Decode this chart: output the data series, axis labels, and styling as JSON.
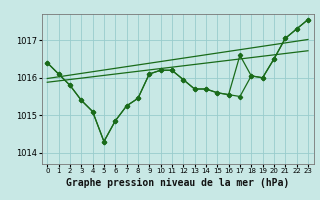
{
  "title": "Graphe pression niveau de la mer (hPa)",
  "bg_color": "#c8e8e5",
  "plot_bg_color": "#c8e8e5",
  "grid_color": "#99cccc",
  "line_color": "#1a6b1a",
  "xlim": [
    -0.5,
    23.5
  ],
  "ylim": [
    1013.7,
    1017.7
  ],
  "yticks": [
    1014,
    1015,
    1016,
    1017
  ],
  "xtick_labels": [
    "0",
    "1",
    "2",
    "3",
    "4",
    "5",
    "6",
    "7",
    "8",
    "9",
    "10",
    "11",
    "12",
    "13",
    "14",
    "15",
    "16",
    "17",
    "18",
    "19",
    "20",
    "21",
    "22",
    "23"
  ],
  "series1": [
    1016.4,
    1016.1,
    1015.8,
    1015.4,
    1015.1,
    1014.3,
    1014.85,
    1015.25,
    1015.45,
    1016.1,
    1016.2,
    1016.2,
    1015.95,
    1015.7,
    1015.7,
    1015.6,
    1015.55,
    1015.5,
    1016.05,
    1016.0,
    1016.5,
    1017.05,
    1017.3,
    1017.55
  ],
  "series2": [
    1016.4,
    1016.1,
    1015.8,
    1015.4,
    1015.1,
    1014.3,
    1014.85,
    1015.25,
    1015.45,
    1016.1,
    1016.2,
    1016.2,
    1015.95,
    1015.7,
    1015.7,
    1015.6,
    1015.55,
    1016.6,
    1016.05,
    1016.0,
    1016.5,
    1017.05,
    1017.3,
    1017.55
  ],
  "trend1_x": [
    0,
    23
  ],
  "trend1_y": [
    1015.88,
    1016.72
  ],
  "trend2_x": [
    0,
    23
  ],
  "trend2_y": [
    1015.98,
    1017.02
  ],
  "ylabel_fontsize": 6,
  "xlabel_fontsize": 7,
  "tick_fontsize": 5
}
